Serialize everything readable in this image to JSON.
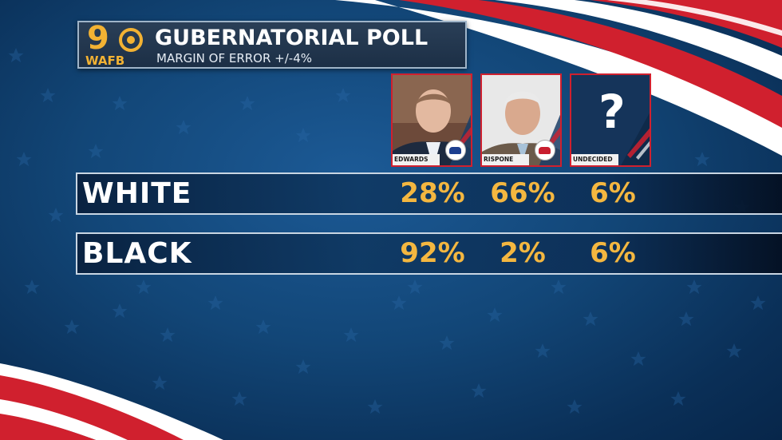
{
  "header": {
    "station_number": "9",
    "station_call": "WAFB",
    "title": "GUBERNATORIAL POLL",
    "subtitle": "MARGIN OF ERROR +/-4%"
  },
  "candidates": [
    {
      "name": "EDWARDS",
      "party": "democrat",
      "party_icon": "donkey-icon"
    },
    {
      "name": "RISPONE",
      "party": "republican",
      "party_icon": "elephant-icon"
    },
    {
      "name": "UNDECIDED",
      "symbol": "?"
    }
  ],
  "rows": [
    {
      "label": "WHITE",
      "values": [
        "28%",
        "66%",
        "6%"
      ]
    },
    {
      "label": "BLACK",
      "values": [
        "92%",
        "2%",
        "6%"
      ]
    }
  ],
  "colors": {
    "accent_gold": "#f4b740",
    "stripe_red": "#d0202e",
    "background_blue": "#124677",
    "dem_blue": "#1c3f8f",
    "rep_red": "#c81e2e"
  }
}
